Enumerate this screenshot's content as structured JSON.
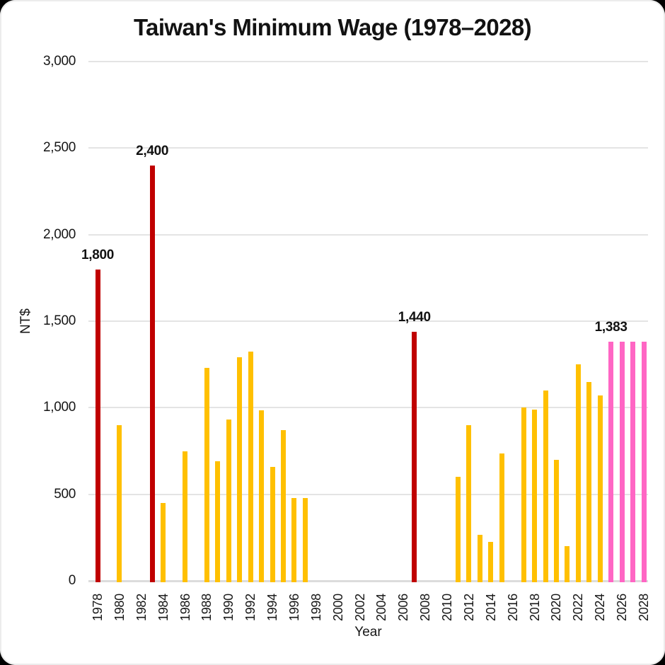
{
  "page": {
    "background": "#000000",
    "card_background": "#FFFFFF"
  },
  "chart_data": {
    "type": "bar",
    "title": "Taiwan's Minimum Wage (1978–2028)",
    "xlabel": "Year",
    "ylabel": "NT$",
    "ylim": [
      0,
      3000
    ],
    "ytick_step": 500,
    "grid": "horizontal",
    "legend_position": "none",
    "colors": {
      "regular": "#FFC000",
      "highlight": "#C00000",
      "projection": "#FF66C4",
      "gridline": "#E4E4E4",
      "axis_line": "#DCDCDC",
      "text": "#121212"
    },
    "yticks": [
      {
        "value": 0,
        "label": "0"
      },
      {
        "value": 500,
        "label": "500"
      },
      {
        "value": 1000,
        "label": "1,000"
      },
      {
        "value": 1500,
        "label": "1,500"
      },
      {
        "value": 2000,
        "label": "2,000"
      },
      {
        "value": 2500,
        "label": "2,500"
      },
      {
        "value": 3000,
        "label": "3,000"
      }
    ],
    "xticks": [
      "1978",
      "1980",
      "1982",
      "1984",
      "1986",
      "1988",
      "1990",
      "1992",
      "1994",
      "1996",
      "1998",
      "2000",
      "2002",
      "2004",
      "2006",
      "2008",
      "2010",
      "2012",
      "2014",
      "2016",
      "2018",
      "2020",
      "2022",
      "2024",
      "2026",
      "2028"
    ],
    "bars": [
      {
        "year": 1978,
        "value": 1800,
        "color": "highlight",
        "label": "1,800"
      },
      {
        "year": 1980,
        "value": 900,
        "color": "regular"
      },
      {
        "year": 1983,
        "value": 2400,
        "color": "highlight",
        "label": "2,400"
      },
      {
        "year": 1984,
        "value": 450,
        "color": "regular"
      },
      {
        "year": 1986,
        "value": 750,
        "color": "regular"
      },
      {
        "year": 1988,
        "value": 1230,
        "color": "regular"
      },
      {
        "year": 1989,
        "value": 690,
        "color": "regular"
      },
      {
        "year": 1990,
        "value": 930,
        "color": "regular"
      },
      {
        "year": 1991,
        "value": 1290,
        "color": "regular"
      },
      {
        "year": 1992,
        "value": 1325,
        "color": "regular"
      },
      {
        "year": 1993,
        "value": 985,
        "color": "regular"
      },
      {
        "year": 1994,
        "value": 660,
        "color": "regular"
      },
      {
        "year": 1995,
        "value": 870,
        "color": "regular"
      },
      {
        "year": 1996,
        "value": 480,
        "color": "regular"
      },
      {
        "year": 1997,
        "value": 480,
        "color": "regular"
      },
      {
        "year": 2007,
        "value": 1440,
        "color": "highlight",
        "label": "1,440"
      },
      {
        "year": 2011,
        "value": 600,
        "color": "regular"
      },
      {
        "year": 2012,
        "value": 900,
        "color": "regular"
      },
      {
        "year": 2013,
        "value": 265,
        "color": "regular"
      },
      {
        "year": 2014,
        "value": 225,
        "color": "regular"
      },
      {
        "year": 2015,
        "value": 735,
        "color": "regular"
      },
      {
        "year": 2017,
        "value": 1000,
        "color": "regular"
      },
      {
        "year": 2018,
        "value": 990,
        "color": "regular"
      },
      {
        "year": 2019,
        "value": 1100,
        "color": "regular"
      },
      {
        "year": 2020,
        "value": 700,
        "color": "regular"
      },
      {
        "year": 2021,
        "value": 200,
        "color": "regular"
      },
      {
        "year": 2022,
        "value": 1250,
        "color": "regular"
      },
      {
        "year": 2023,
        "value": 1150,
        "color": "regular"
      },
      {
        "year": 2024,
        "value": 1070,
        "color": "regular"
      },
      {
        "year": 2025,
        "value": 1383,
        "color": "projection",
        "label": "1,383"
      },
      {
        "year": 2026,
        "value": 1383,
        "color": "projection"
      },
      {
        "year": 2027,
        "value": 1383,
        "color": "projection"
      },
      {
        "year": 2028,
        "value": 1383,
        "color": "projection"
      }
    ]
  }
}
